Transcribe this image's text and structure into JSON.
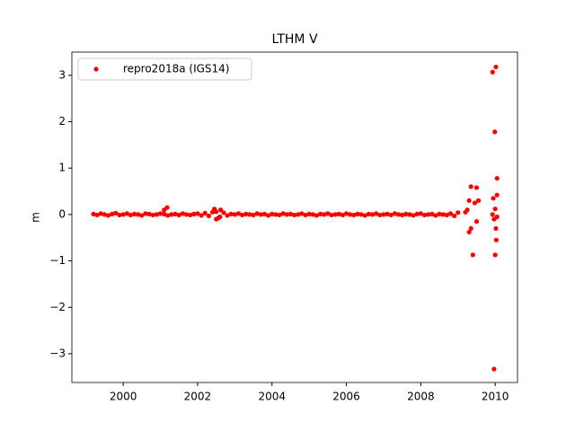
{
  "chart_data": {
    "type": "scatter",
    "title": "LTHM V",
    "ylabel": "m",
    "xlim": [
      1998.62,
      2010.6
    ],
    "ylim": [
      -3.62,
      3.5
    ],
    "xticks": [
      2000,
      2002,
      2004,
      2006,
      2008,
      2010
    ],
    "yticks": [
      {
        "value": -3,
        "label": "−3"
      },
      {
        "value": -2,
        "label": "−2"
      },
      {
        "value": -1,
        "label": "−1"
      },
      0,
      1,
      2,
      3
    ],
    "legend": "upper left",
    "x": [
      1999.2,
      1999.3,
      1999.4,
      1999.5,
      1999.6,
      1999.7,
      1999.8,
      1999.9,
      2000.0,
      2000.1,
      2000.2,
      2000.3,
      2000.4,
      2000.5,
      2000.6,
      2000.7,
      2000.8,
      2000.9,
      2001.0,
      2001.1,
      2001.2,
      2001.3,
      2001.4,
      2001.5,
      2001.6,
      2001.7,
      2001.8,
      2001.9,
      2002.0,
      2002.1,
      2002.2,
      2002.3,
      2002.4,
      2002.5,
      2002.6,
      2002.7,
      2002.8,
      2002.9,
      2003.0,
      2003.1,
      2003.2,
      2003.3,
      2003.4,
      2003.5,
      2003.6,
      2003.7,
      2003.8,
      2003.9,
      2004.0,
      2004.1,
      2004.2,
      2004.3,
      2004.4,
      2004.5,
      2004.6,
      2004.7,
      2004.8,
      2004.9,
      2005.0,
      2005.1,
      2005.2,
      2005.3,
      2005.4,
      2005.5,
      2005.6,
      2005.7,
      2005.8,
      2005.9,
      2006.0,
      2006.1,
      2006.2,
      2006.3,
      2006.4,
      2006.5,
      2006.6,
      2006.7,
      2006.8,
      2006.9,
      2007.0,
      2007.1,
      2007.2,
      2007.3,
      2007.4,
      2007.5,
      2007.6,
      2007.7,
      2007.8,
      2007.9,
      2008.0,
      2008.1,
      2008.2,
      2008.3,
      2008.4,
      2008.5,
      2008.6,
      2008.7,
      2008.8,
      2008.9,
      2009.0,
      2001.1,
      2001.18,
      2002.45,
      2002.55,
      2002.62,
      2002.5,
      2009.2,
      2009.25,
      2009.3,
      2009.3,
      2009.35,
      2009.35,
      2009.4,
      2009.45,
      2009.5,
      2009.5,
      2009.55,
      2009.93,
      2010.02,
      2009.99,
      2010.05,
      2010.05,
      2009.95,
      2010.0,
      2009.97,
      2010.02,
      2010.03,
      2010.0,
      2009.97,
      2010.05,
      2009.93
    ],
    "series": [
      {
        "name": "repro2018a (IGS14)",
        "color": "#ff0000",
        "values": [
          0.01,
          -0.01,
          0.02,
          0,
          -0.02,
          0.01,
          0.03,
          -0.01,
          0,
          0.02,
          -0.01,
          0.01,
          0,
          -0.02,
          0.02,
          0.01,
          -0.01,
          0,
          0.02,
          0.01,
          -0.02,
          0,
          0.01,
          -0.01,
          0.02,
          0,
          -0.01,
          0.01,
          0.02,
          -0.02,
          0.03,
          -0.03,
          0.05,
          0.06,
          -0.05,
          0.04,
          -0.02,
          0.01,
          0,
          0.02,
          -0.01,
          0.01,
          0,
          -0.01,
          0.02,
          0,
          0.01,
          -0.02,
          0.01,
          0,
          -0.01,
          0.02,
          0,
          0.01,
          -0.01,
          0,
          0.02,
          -0.01,
          0.01,
          0,
          -0.02,
          0.01,
          0,
          0.02,
          -0.01,
          0,
          0.01,
          -0.01,
          0.02,
          0,
          -0.01,
          0.01,
          0,
          -0.02,
          0.01,
          0,
          0.02,
          -0.01,
          0,
          0.01,
          -0.01,
          0.02,
          0,
          -0.01,
          0.01,
          0,
          -0.02,
          0.01,
          0.02,
          -0.01,
          0,
          0.01,
          -0.02,
          0.01,
          0,
          -0.01,
          0.02,
          -0.03,
          0.04,
          0.1,
          0.15,
          0.12,
          -0.08,
          0.1,
          -0.1,
          0.05,
          0.1,
          0.3,
          -0.38,
          0.6,
          -0.3,
          -0.87,
          0.25,
          0.58,
          -0.15,
          0.3,
          3.07,
          3.18,
          1.78,
          0.78,
          0.42,
          0.35,
          0.12,
          -0.1,
          -0.3,
          -0.55,
          -0.87,
          -3.33,
          -0.05,
          0
        ]
      }
    ]
  }
}
